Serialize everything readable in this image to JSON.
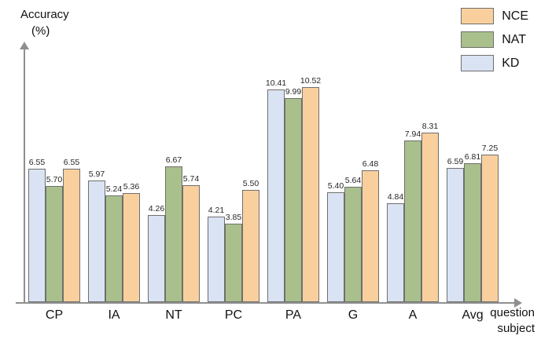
{
  "axis": {
    "y_label_1": "Accuracy",
    "y_label_2": "(%)",
    "x_label_1": "question",
    "x_label_2": "subject"
  },
  "chart_data": {
    "type": "bar",
    "title": "",
    "ylabel": "Accuracy (%)",
    "xlabel": "question subject",
    "ylim": [
      0,
      11
    ],
    "grid": false,
    "legend_position": "top-right",
    "categories": [
      "CP",
      "IA",
      "NT",
      "PC",
      "PA",
      "G",
      "A",
      "Avg"
    ],
    "series": [
      {
        "name": "KD",
        "color": "#dae3f3",
        "values": [
          6.55,
          5.97,
          4.26,
          4.21,
          10.41,
          5.4,
          4.84,
          6.59
        ]
      },
      {
        "name": "NAT",
        "color": "#a9c08c",
        "values": [
          5.7,
          5.24,
          6.67,
          3.85,
          9.99,
          5.64,
          7.94,
          6.81
        ]
      },
      {
        "name": "NCE",
        "color": "#f9d09d",
        "values": [
          6.55,
          5.36,
          5.74,
          5.5,
          10.52,
          6.48,
          8.31,
          7.25
        ]
      }
    ],
    "legend": [
      "NCE",
      "NAT",
      "KD"
    ]
  }
}
